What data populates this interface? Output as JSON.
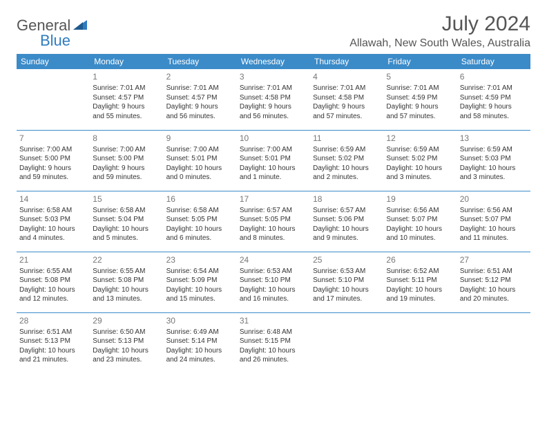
{
  "brand": {
    "general": "General",
    "blue": "Blue"
  },
  "title": "July 2024",
  "location": "Allawah, New South Wales, Australia",
  "colors": {
    "header_bg": "#3b8bc9",
    "header_text": "#ffffff",
    "border": "#3b8bc9",
    "title_text": "#555555",
    "body_text": "#333333",
    "daynum_text": "#777777",
    "brand_blue": "#2f7cc0"
  },
  "weekdays": [
    "Sunday",
    "Monday",
    "Tuesday",
    "Wednesday",
    "Thursday",
    "Friday",
    "Saturday"
  ],
  "weeks": [
    [
      null,
      {
        "n": "1",
        "sr": "Sunrise: 7:01 AM",
        "ss": "Sunset: 4:57 PM",
        "d1": "Daylight: 9 hours",
        "d2": "and 55 minutes."
      },
      {
        "n": "2",
        "sr": "Sunrise: 7:01 AM",
        "ss": "Sunset: 4:57 PM",
        "d1": "Daylight: 9 hours",
        "d2": "and 56 minutes."
      },
      {
        "n": "3",
        "sr": "Sunrise: 7:01 AM",
        "ss": "Sunset: 4:58 PM",
        "d1": "Daylight: 9 hours",
        "d2": "and 56 minutes."
      },
      {
        "n": "4",
        "sr": "Sunrise: 7:01 AM",
        "ss": "Sunset: 4:58 PM",
        "d1": "Daylight: 9 hours",
        "d2": "and 57 minutes."
      },
      {
        "n": "5",
        "sr": "Sunrise: 7:01 AM",
        "ss": "Sunset: 4:59 PM",
        "d1": "Daylight: 9 hours",
        "d2": "and 57 minutes."
      },
      {
        "n": "6",
        "sr": "Sunrise: 7:01 AM",
        "ss": "Sunset: 4:59 PM",
        "d1": "Daylight: 9 hours",
        "d2": "and 58 minutes."
      }
    ],
    [
      {
        "n": "7",
        "sr": "Sunrise: 7:00 AM",
        "ss": "Sunset: 5:00 PM",
        "d1": "Daylight: 9 hours",
        "d2": "and 59 minutes."
      },
      {
        "n": "8",
        "sr": "Sunrise: 7:00 AM",
        "ss": "Sunset: 5:00 PM",
        "d1": "Daylight: 9 hours",
        "d2": "and 59 minutes."
      },
      {
        "n": "9",
        "sr": "Sunrise: 7:00 AM",
        "ss": "Sunset: 5:01 PM",
        "d1": "Daylight: 10 hours",
        "d2": "and 0 minutes."
      },
      {
        "n": "10",
        "sr": "Sunrise: 7:00 AM",
        "ss": "Sunset: 5:01 PM",
        "d1": "Daylight: 10 hours",
        "d2": "and 1 minute."
      },
      {
        "n": "11",
        "sr": "Sunrise: 6:59 AM",
        "ss": "Sunset: 5:02 PM",
        "d1": "Daylight: 10 hours",
        "d2": "and 2 minutes."
      },
      {
        "n": "12",
        "sr": "Sunrise: 6:59 AM",
        "ss": "Sunset: 5:02 PM",
        "d1": "Daylight: 10 hours",
        "d2": "and 3 minutes."
      },
      {
        "n": "13",
        "sr": "Sunrise: 6:59 AM",
        "ss": "Sunset: 5:03 PM",
        "d1": "Daylight: 10 hours",
        "d2": "and 3 minutes."
      }
    ],
    [
      {
        "n": "14",
        "sr": "Sunrise: 6:58 AM",
        "ss": "Sunset: 5:03 PM",
        "d1": "Daylight: 10 hours",
        "d2": "and 4 minutes."
      },
      {
        "n": "15",
        "sr": "Sunrise: 6:58 AM",
        "ss": "Sunset: 5:04 PM",
        "d1": "Daylight: 10 hours",
        "d2": "and 5 minutes."
      },
      {
        "n": "16",
        "sr": "Sunrise: 6:58 AM",
        "ss": "Sunset: 5:05 PM",
        "d1": "Daylight: 10 hours",
        "d2": "and 6 minutes."
      },
      {
        "n": "17",
        "sr": "Sunrise: 6:57 AM",
        "ss": "Sunset: 5:05 PM",
        "d1": "Daylight: 10 hours",
        "d2": "and 8 minutes."
      },
      {
        "n": "18",
        "sr": "Sunrise: 6:57 AM",
        "ss": "Sunset: 5:06 PM",
        "d1": "Daylight: 10 hours",
        "d2": "and 9 minutes."
      },
      {
        "n": "19",
        "sr": "Sunrise: 6:56 AM",
        "ss": "Sunset: 5:07 PM",
        "d1": "Daylight: 10 hours",
        "d2": "and 10 minutes."
      },
      {
        "n": "20",
        "sr": "Sunrise: 6:56 AM",
        "ss": "Sunset: 5:07 PM",
        "d1": "Daylight: 10 hours",
        "d2": "and 11 minutes."
      }
    ],
    [
      {
        "n": "21",
        "sr": "Sunrise: 6:55 AM",
        "ss": "Sunset: 5:08 PM",
        "d1": "Daylight: 10 hours",
        "d2": "and 12 minutes."
      },
      {
        "n": "22",
        "sr": "Sunrise: 6:55 AM",
        "ss": "Sunset: 5:08 PM",
        "d1": "Daylight: 10 hours",
        "d2": "and 13 minutes."
      },
      {
        "n": "23",
        "sr": "Sunrise: 6:54 AM",
        "ss": "Sunset: 5:09 PM",
        "d1": "Daylight: 10 hours",
        "d2": "and 15 minutes."
      },
      {
        "n": "24",
        "sr": "Sunrise: 6:53 AM",
        "ss": "Sunset: 5:10 PM",
        "d1": "Daylight: 10 hours",
        "d2": "and 16 minutes."
      },
      {
        "n": "25",
        "sr": "Sunrise: 6:53 AM",
        "ss": "Sunset: 5:10 PM",
        "d1": "Daylight: 10 hours",
        "d2": "and 17 minutes."
      },
      {
        "n": "26",
        "sr": "Sunrise: 6:52 AM",
        "ss": "Sunset: 5:11 PM",
        "d1": "Daylight: 10 hours",
        "d2": "and 19 minutes."
      },
      {
        "n": "27",
        "sr": "Sunrise: 6:51 AM",
        "ss": "Sunset: 5:12 PM",
        "d1": "Daylight: 10 hours",
        "d2": "and 20 minutes."
      }
    ],
    [
      {
        "n": "28",
        "sr": "Sunrise: 6:51 AM",
        "ss": "Sunset: 5:13 PM",
        "d1": "Daylight: 10 hours",
        "d2": "and 21 minutes."
      },
      {
        "n": "29",
        "sr": "Sunrise: 6:50 AM",
        "ss": "Sunset: 5:13 PM",
        "d1": "Daylight: 10 hours",
        "d2": "and 23 minutes."
      },
      {
        "n": "30",
        "sr": "Sunrise: 6:49 AM",
        "ss": "Sunset: 5:14 PM",
        "d1": "Daylight: 10 hours",
        "d2": "and 24 minutes."
      },
      {
        "n": "31",
        "sr": "Sunrise: 6:48 AM",
        "ss": "Sunset: 5:15 PM",
        "d1": "Daylight: 10 hours",
        "d2": "and 26 minutes."
      },
      null,
      null,
      null
    ]
  ]
}
